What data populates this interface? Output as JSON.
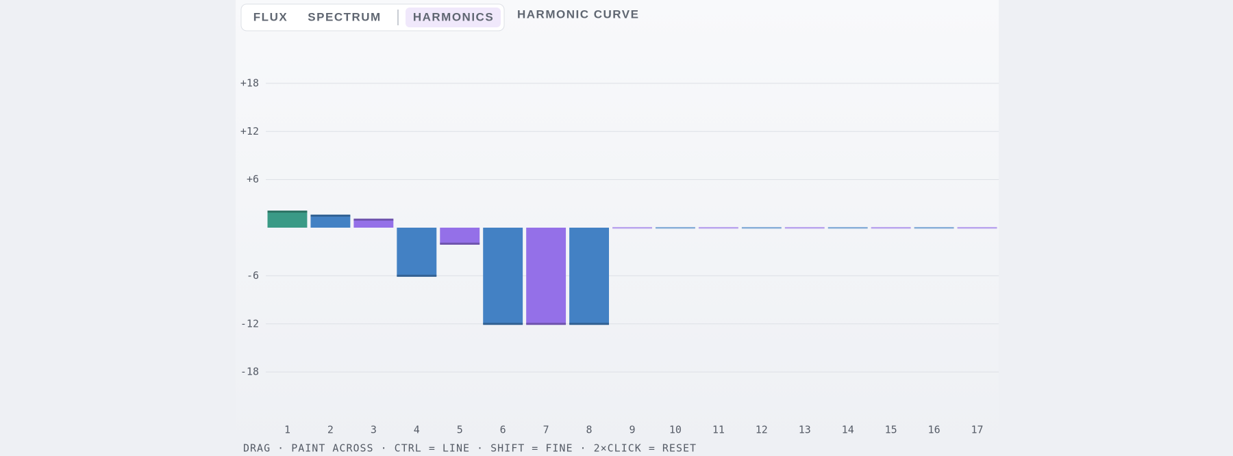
{
  "tabs": [
    "FLUX",
    "SPECTRUM",
    "HARMONICS"
  ],
  "active_tab": 2,
  "hint": "DRAG · PAINT ACROSS · CTRL = LINE · SHIFT = FINE · 2×CLICK = RESET",
  "chart_data": {
    "type": "bar",
    "title": "HARMONIC CURVE",
    "categories": [
      "1",
      "2",
      "3",
      "4",
      "5",
      "6",
      "7",
      "8",
      "9",
      "10",
      "11",
      "12",
      "13",
      "14",
      "15",
      "16",
      "17"
    ],
    "values": [
      2,
      1.5,
      1,
      -6,
      -2,
      -12,
      -12,
      -12,
      0,
      0,
      0,
      0,
      0,
      0,
      0,
      0,
      0
    ],
    "colors": [
      "#3a9a86",
      "#4381c4",
      "#9470e8",
      "#4381c4",
      "#9470e8",
      "#4381c4",
      "#9470e8",
      "#4381c4",
      "#9470e8",
      "#4381c4",
      "#9470e8",
      "#4381c4",
      "#9470e8",
      "#4381c4",
      "#9470e8",
      "#4381c4",
      "#9470e8"
    ],
    "ylim": [
      -24,
      24
    ],
    "yticks": [
      {
        "value": 18,
        "label": "+18"
      },
      {
        "value": 12,
        "label": "+12"
      },
      {
        "value": 6,
        "label": "+6"
      },
      -6,
      -12,
      -18
    ],
    "grid": true
  }
}
